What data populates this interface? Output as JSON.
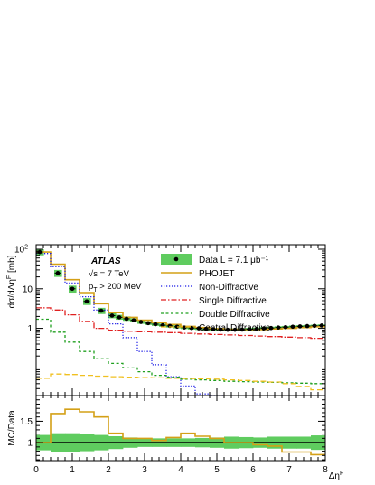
{
  "chart_data": [
    {
      "type": "line",
      "experiment": "ATLAS",
      "energy_label": "√s = 7 TeV",
      "pt_label": "p_T > 200 MeV",
      "ylabel": "dσ/dΔη^F [mb]",
      "yscale": "log",
      "ylim": [
        0.02,
        130
      ],
      "xlim": [
        0,
        8
      ],
      "y_ticks": [
        {
          "v": 100,
          "l": "10²"
        },
        {
          "v": 10,
          "l": "10"
        },
        {
          "v": 1,
          "l": "1"
        }
      ],
      "legend_position": "top-right",
      "data": {
        "name": "Data L = 7.1 μb⁻¹",
        "x": [
          0.1,
          0.6,
          1.0,
          1.4,
          1.8,
          2.1,
          2.3,
          2.5,
          2.7,
          2.9,
          3.1,
          3.3,
          3.5,
          3.7,
          3.9,
          4.1,
          4.3,
          4.5,
          4.7,
          4.9,
          5.1,
          5.3,
          5.5,
          5.7,
          5.9,
          6.1,
          6.3,
          6.5,
          6.7,
          6.9,
          7.1,
          7.3,
          7.5,
          7.7,
          7.9
        ],
        "y": [
          85,
          25,
          10,
          4.8,
          2.8,
          2.1,
          1.9,
          1.75,
          1.6,
          1.45,
          1.35,
          1.27,
          1.2,
          1.15,
          1.1,
          1.05,
          1.02,
          1.0,
          0.97,
          0.95,
          0.93,
          0.92,
          0.92,
          0.93,
          0.95,
          0.97,
          1.0,
          1.02,
          1.05,
          1.07,
          1.1,
          1.12,
          1.14,
          1.16,
          1.18
        ],
        "band_low": [
          70,
          20,
          8,
          3.9,
          2.3,
          1.8,
          1.65,
          1.55,
          1.45,
          1.3,
          1.22,
          1.15,
          1.1,
          1.05,
          1.0,
          0.96,
          0.93,
          0.91,
          0.89,
          0.87,
          0.85,
          0.85,
          0.85,
          0.86,
          0.88,
          0.9,
          0.93,
          0.95,
          0.98,
          1.0,
          1.03,
          1.05,
          1.07,
          1.09,
          1.11
        ],
        "band_high": [
          100,
          30,
          12,
          5.8,
          3.3,
          2.45,
          2.2,
          2.0,
          1.8,
          1.62,
          1.5,
          1.4,
          1.32,
          1.26,
          1.2,
          1.14,
          1.11,
          1.08,
          1.05,
          1.03,
          1.01,
          1.0,
          1.0,
          1.01,
          1.03,
          1.05,
          1.08,
          1.1,
          1.13,
          1.15,
          1.18,
          1.2,
          1.22,
          1.24,
          1.26
        ]
      },
      "series": [
        {
          "name": "PHOJET",
          "style": "solid",
          "color": "#d4a017",
          "edges": [
            0,
            0.4,
            0.8,
            1.2,
            1.6,
            2.0,
            2.4,
            2.8,
            3.2,
            3.6,
            4.0,
            4.4,
            4.8,
            5.2,
            5.6,
            6.0,
            6.4,
            6.8,
            7.2,
            7.6,
            8.0
          ],
          "values": [
            85,
            42,
            17,
            8,
            4.2,
            2.5,
            1.9,
            1.6,
            1.4,
            1.25,
            1.12,
            1.05,
            0.98,
            0.95,
            0.93,
            0.93,
            0.97,
            1.0,
            1.05,
            1.1
          ]
        },
        {
          "name": "Non-Diffractive",
          "style": "dotted",
          "color": "#1a1ae6",
          "edges": [
            0,
            0.4,
            0.8,
            1.2,
            1.6,
            2.0,
            2.4,
            2.8,
            3.2,
            3.6,
            4.0,
            4.4,
            4.8,
            5.2
          ],
          "values": [
            78,
            36,
            14,
            6.3,
            2.9,
            1.3,
            0.58,
            0.26,
            0.12,
            0.06,
            0.035,
            0.022,
            0.02
          ]
        },
        {
          "name": "Single Diffractive",
          "style": "dashdot",
          "color": "#e02020",
          "edges": [
            0,
            0.4,
            0.8,
            1.2,
            1.6,
            2.0,
            2.4,
            2.8,
            3.2,
            3.6,
            4.0,
            4.4,
            4.8,
            5.2,
            5.6,
            6.0,
            6.4,
            6.8,
            7.2,
            7.6,
            8.0
          ],
          "values": [
            3.3,
            2.9,
            2.2,
            1.5,
            1.0,
            0.9,
            0.85,
            0.82,
            0.8,
            0.78,
            0.75,
            0.72,
            0.7,
            0.68,
            0.66,
            0.64,
            0.62,
            0.6,
            0.58,
            0.56
          ]
        },
        {
          "name": "Double Diffractive",
          "style": "dashed",
          "color": "#20a020",
          "edges": [
            0,
            0.4,
            0.8,
            1.2,
            1.6,
            2.0,
            2.4,
            2.8,
            3.2,
            3.6,
            4.0,
            4.4,
            4.8,
            5.2,
            5.6,
            6.0,
            6.4,
            6.8,
            7.2,
            7.6,
            8.0
          ],
          "values": [
            1.7,
            0.8,
            0.45,
            0.26,
            0.17,
            0.13,
            0.1,
            0.08,
            0.065,
            0.058,
            0.052,
            0.05,
            0.048,
            0.046,
            0.045,
            0.044,
            0.043,
            0.042,
            0.041,
            0.04
          ]
        },
        {
          "name": "Central Diffractive",
          "style": "longdash",
          "color": "#f0c020",
          "edges": [
            0,
            0.4,
            0.8,
            1.2,
            1.6,
            2.0,
            2.4,
            2.8,
            3.2,
            3.6,
            4.0,
            4.4,
            4.8,
            5.2,
            5.6,
            6.0,
            6.4,
            6.8,
            7.2,
            7.6,
            8.0
          ],
          "values": [
            0.055,
            0.07,
            0.068,
            0.065,
            0.062,
            0.06,
            0.058,
            0.057,
            0.056,
            0.055,
            0.054,
            0.053,
            0.052,
            0.05,
            0.048,
            0.046,
            0.044,
            0.04,
            0.034,
            0.028
          ]
        }
      ]
    },
    {
      "type": "line",
      "ylabel": "MC/Data",
      "xlabel": "Δη^F",
      "xlim": [
        0,
        8
      ],
      "ylim": [
        0.58,
        2.1
      ],
      "y_ticks": [
        {
          "v": 1.5,
          "l": "1.5"
        },
        {
          "v": 1,
          "l": "1"
        }
      ],
      "x_ticks": [
        0,
        1,
        2,
        3,
        4,
        5,
        6,
        7,
        8
      ],
      "reference": 1,
      "band": {
        "edges": [
          0,
          0.4,
          0.8,
          1.2,
          1.6,
          2.0,
          2.4,
          2.8,
          3.2,
          3.6,
          4.0,
          4.4,
          4.8,
          5.2,
          5.6,
          6.0,
          6.4,
          6.8,
          7.2,
          7.6,
          8.0
        ],
        "low": [
          0.82,
          0.78,
          0.78,
          0.8,
          0.82,
          0.85,
          0.88,
          0.9,
          0.9,
          0.9,
          0.9,
          0.89,
          0.88,
          0.86,
          0.87,
          0.88,
          0.86,
          0.86,
          0.86,
          0.83
        ],
        "high": [
          1.18,
          1.22,
          1.22,
          1.2,
          1.18,
          1.15,
          1.12,
          1.1,
          1.1,
          1.1,
          1.1,
          1.11,
          1.12,
          1.14,
          1.13,
          1.12,
          1.14,
          1.14,
          1.14,
          1.17
        ]
      },
      "series": [
        {
          "name": "PHOJET",
          "color": "#d4a017",
          "edges": [
            0,
            0.4,
            0.8,
            1.2,
            1.6,
            2.0,
            2.4,
            2.8,
            3.2,
            3.6,
            4.0,
            4.4,
            4.8,
            5.2,
            5.6,
            6.0,
            6.4,
            6.8,
            7.2,
            7.6,
            8.0
          ],
          "values": [
            1.0,
            1.68,
            1.78,
            1.72,
            1.6,
            1.22,
            1.1,
            1.1,
            1.05,
            1.12,
            1.22,
            1.15,
            1.1,
            1.0,
            1.0,
            0.95,
            0.92,
            0.78,
            0.78,
            0.72
          ]
        }
      ]
    }
  ]
}
